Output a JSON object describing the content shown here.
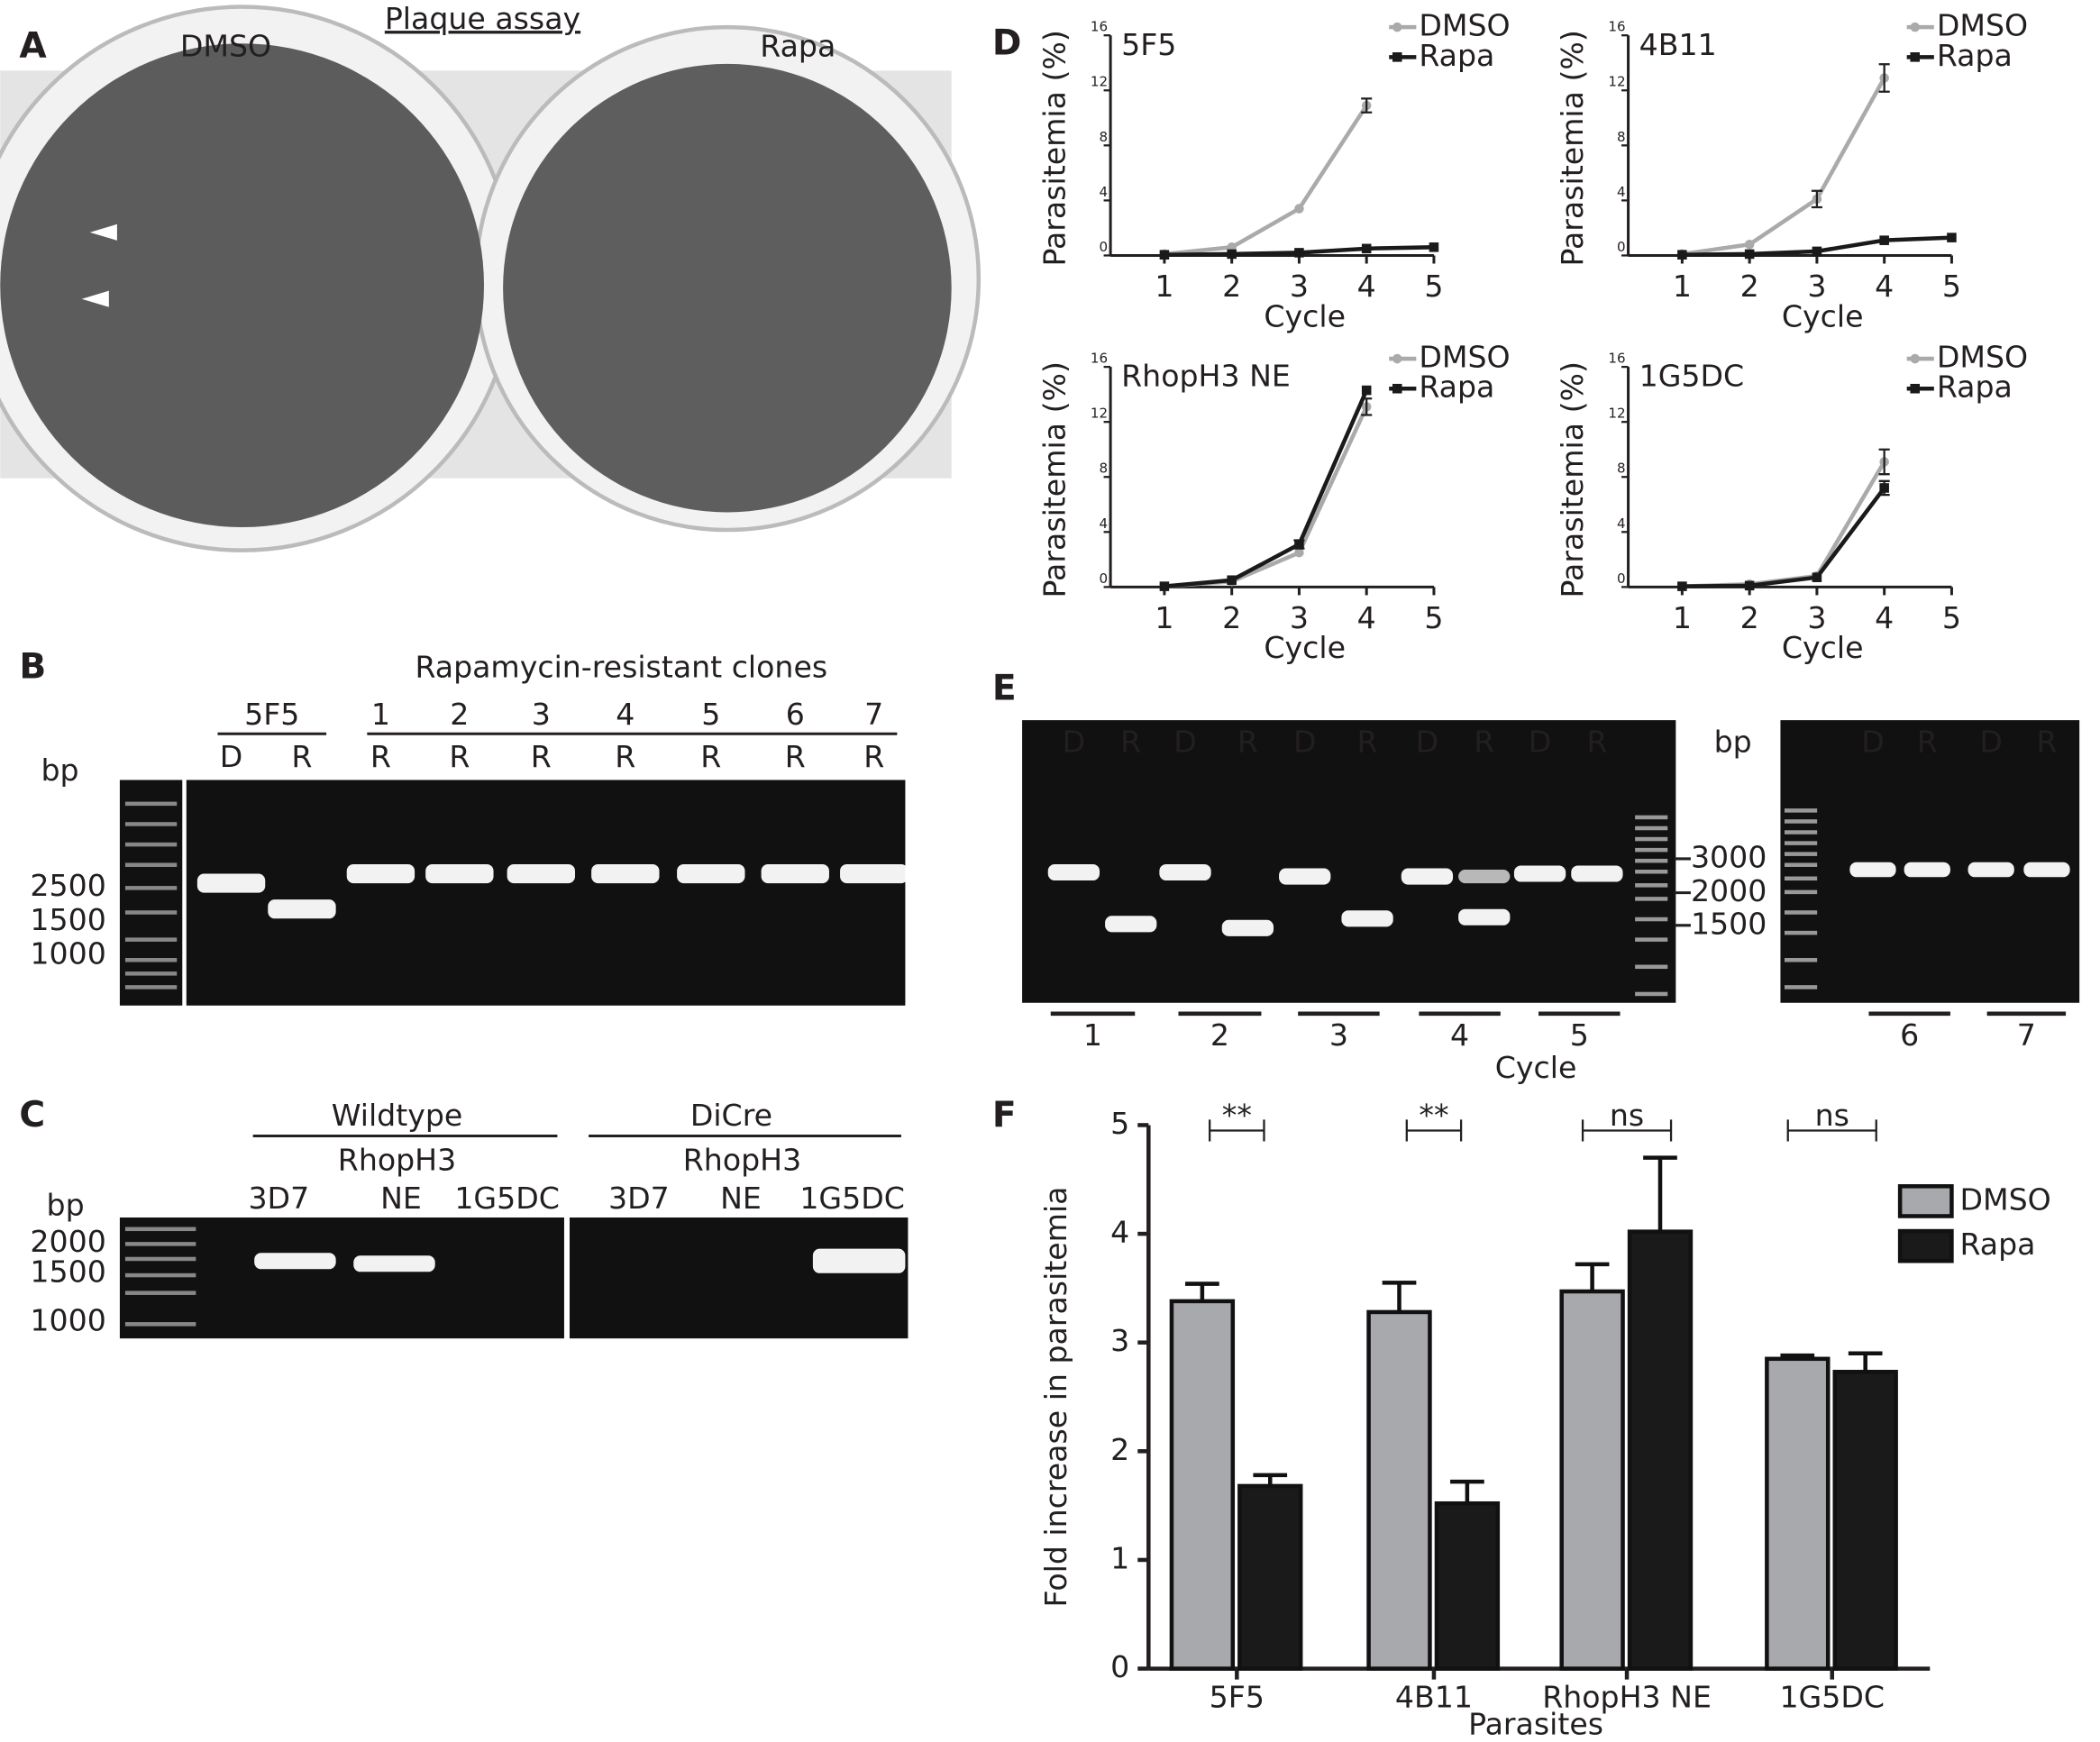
{
  "panel_labels": [
    "A",
    "B",
    "C",
    "D",
    "E",
    "F"
  ],
  "panel_a": {
    "title": "Plaque assay",
    "wells": [
      "DMSO",
      "Rapa"
    ]
  },
  "panel_b": {
    "header": "Rapamycin-resistant clones",
    "groups": [
      "5F5",
      "1",
      "2",
      "3",
      "4",
      "5",
      "6",
      "7"
    ],
    "lanes": [
      "D",
      "R",
      "R",
      "R",
      "R",
      "R",
      "R",
      "R",
      "R"
    ],
    "bp_label": "bp",
    "markers": [
      "2500",
      "1500",
      "1000"
    ]
  },
  "panel_c": {
    "groups": [
      {
        "name": "Wildtype",
        "gene": "RhopH3",
        "lanes": [
          "3D7",
          "NE",
          "1G5DC"
        ]
      },
      {
        "name": "DiCre",
        "gene": "RhopH3",
        "lanes": [
          "3D7",
          "NE",
          "1G5DC"
        ]
      }
    ],
    "bp_label": "bp",
    "markers": [
      "2000",
      "1500",
      "1000"
    ]
  },
  "panel_e": {
    "lanes_left": [
      "D",
      "R",
      "D",
      "R",
      "D",
      "R",
      "D",
      "R",
      "D",
      "R"
    ],
    "lanes_right": [
      "D",
      "R",
      "D",
      "R"
    ],
    "bp_label": "bp",
    "markers": [
      "3000",
      "2000",
      "1500"
    ],
    "cycles_left": [
      "1",
      "2",
      "3",
      "4",
      "5"
    ],
    "cycles_right": [
      "6",
      "7"
    ],
    "x_label": "Cycle"
  },
  "chart_data": [
    {
      "type": "line",
      "title": "5F5",
      "x": [
        1,
        2,
        3,
        4,
        5
      ],
      "xlim": [
        0.2,
        5
      ],
      "xticks": [
        1,
        2,
        3,
        4,
        5
      ],
      "ylim": [
        0,
        16
      ],
      "yticks": [
        0,
        4,
        8,
        12,
        16
      ],
      "x_label": "Cycle",
      "y_label": "Parasitemia (%)",
      "series": [
        {
          "name": "DMSO",
          "color": "#aaaaaa",
          "marker": "circle",
          "values": [
            0.1,
            0.6,
            3.4,
            10.9,
            null
          ],
          "errors": [
            null,
            null,
            null,
            0.5,
            null
          ]
        },
        {
          "name": "Rapa",
          "color": "#1a1a1a",
          "marker": "square",
          "values": [
            0.05,
            0.1,
            0.2,
            0.5,
            0.6
          ]
        }
      ]
    },
    {
      "type": "line",
      "title": "4B11",
      "x": [
        1,
        2,
        3,
        4,
        5
      ],
      "xlim": [
        0.2,
        5
      ],
      "xticks": [
        1,
        2,
        3,
        4,
        5
      ],
      "ylim": [
        0,
        16
      ],
      "yticks": [
        0,
        4,
        8,
        12,
        16
      ],
      "x_label": "Cycle",
      "y_label": "Parasitemia (%)",
      "series": [
        {
          "name": "DMSO",
          "color": "#aaaaaa",
          "marker": "circle",
          "values": [
            0.1,
            0.8,
            4.1,
            12.9,
            null
          ],
          "errors": [
            null,
            null,
            0.6,
            1.0,
            null
          ]
        },
        {
          "name": "Rapa",
          "color": "#1a1a1a",
          "marker": "square",
          "values": [
            0.05,
            0.1,
            0.3,
            1.1,
            1.3
          ]
        }
      ]
    },
    {
      "type": "line",
      "title": "RhopH3 NE",
      "x": [
        1,
        2,
        3,
        4,
        5
      ],
      "xlim": [
        0.2,
        5
      ],
      "xticks": [
        1,
        2,
        3,
        4,
        5
      ],
      "ylim": [
        0,
        16
      ],
      "yticks": [
        0,
        4,
        8,
        12,
        16
      ],
      "x_label": "Cycle",
      "y_label": "Parasitemia (%)",
      "series": [
        {
          "name": "DMSO",
          "color": "#aaaaaa",
          "marker": "circle",
          "values": [
            0.05,
            0.4,
            2.5,
            13.1,
            null
          ],
          "errors": [
            null,
            null,
            null,
            0.6,
            null
          ]
        },
        {
          "name": "Rapa",
          "color": "#1a1a1a",
          "marker": "square",
          "values": [
            0.05,
            0.5,
            3.1,
            14.3,
            null
          ],
          "errors": [
            null,
            null,
            0.3,
            null,
            null
          ]
        }
      ]
    },
    {
      "type": "line",
      "title": "1G5DC",
      "x": [
        1,
        2,
        3,
        4,
        5
      ],
      "xlim": [
        0.2,
        5
      ],
      "xticks": [
        1,
        2,
        3,
        4,
        5
      ],
      "ylim": [
        0,
        16
      ],
      "yticks": [
        0,
        4,
        8,
        12,
        16
      ],
      "x_label": "Cycle",
      "y_label": "Parasitemia (%)",
      "series": [
        {
          "name": "DMSO",
          "color": "#aaaaaa",
          "marker": "circle",
          "values": [
            0.05,
            0.2,
            0.8,
            9.1,
            null
          ],
          "errors": [
            null,
            null,
            null,
            0.9,
            null
          ]
        },
        {
          "name": "Rapa",
          "color": "#1a1a1a",
          "marker": "square",
          "values": [
            0.05,
            0.1,
            0.7,
            7.2,
            null
          ],
          "errors": [
            null,
            null,
            null,
            0.5,
            null
          ]
        }
      ]
    },
    {
      "type": "bar",
      "categories": [
        "5F5",
        "4B11",
        "RhopH3 NE",
        "1G5DC"
      ],
      "x_label": "Parasites",
      "y_label": "Fold increase in parasitemia",
      "ylim": [
        0,
        5
      ],
      "yticks": [
        0,
        1,
        2,
        3,
        4,
        5
      ],
      "annotations": [
        "**",
        "**",
        "ns",
        "ns"
      ],
      "series": [
        {
          "name": "DMSO",
          "color": "#a7a9ac",
          "values": [
            3.38,
            3.28,
            3.47,
            2.85
          ],
          "errors": [
            0.16,
            0.27,
            0.25,
            0.03
          ]
        },
        {
          "name": "Rapa",
          "color": "#1a1a1a",
          "values": [
            1.68,
            1.52,
            4.02,
            2.73
          ],
          "errors": [
            0.1,
            0.2,
            0.68,
            0.17
          ]
        }
      ]
    }
  ]
}
